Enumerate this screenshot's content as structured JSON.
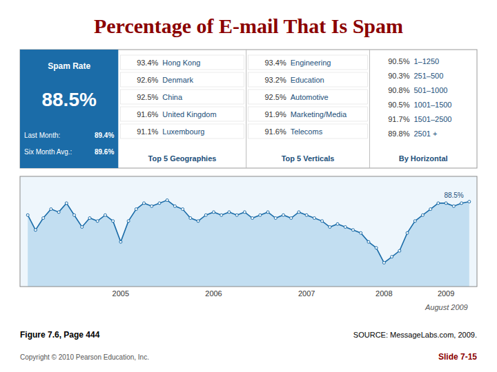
{
  "chart_data": {
    "type": "line",
    "title": "Percentage of E-mail That Is Spam",
    "categories": [
      null,
      null,
      null,
      null,
      null,
      null,
      null,
      null,
      null,
      null,
      null,
      null,
      "2005",
      null,
      null,
      null,
      null,
      null,
      null,
      null,
      null,
      null,
      null,
      null,
      "2006",
      null,
      null,
      null,
      null,
      null,
      null,
      null,
      null,
      null,
      null,
      null,
      "2007",
      null,
      null,
      null,
      null,
      null,
      null,
      null,
      null,
      null,
      "2008",
      null,
      null,
      null,
      null,
      null,
      null,
      null,
      "2009",
      null,
      null,
      null
    ],
    "values": [
      84,
      79,
      83,
      86,
      85,
      88,
      84,
      80,
      83,
      82,
      84,
      82,
      75,
      82,
      86,
      88,
      87,
      88,
      89,
      87,
      86,
      83,
      82,
      84,
      85,
      84,
      85,
      84,
      85,
      83,
      84,
      85,
      83,
      84,
      83,
      85,
      84,
      83,
      82,
      80,
      81,
      80,
      79,
      78,
      75,
      73,
      68,
      70,
      72,
      78,
      82,
      84,
      86,
      88,
      88,
      87,
      88,
      88.5
    ],
    "color": "#1B6CA8",
    "marker": "circle",
    "ylim": [
      60,
      97
    ],
    "tick_labels": "x",
    "grid": false,
    "annotations": [
      "88.5%"
    ]
  },
  "panel": {
    "spam_rate_label": "Spam Rate",
    "spam_rate_value": "88.5%",
    "last_month_label": "Last Month:",
    "last_month_value": "89.4%",
    "six_month_label": "Six Month Avg.:",
    "six_month_value": "89.6%",
    "geo_label": "Top 5 Geographies",
    "vert_label": "Top 5 Verticals",
    "horiz_label": "By Horizontal",
    "geo": [
      {
        "pct": "93.4%",
        "name": "Hong Kong"
      },
      {
        "pct": "92.6%",
        "name": "Denmark"
      },
      {
        "pct": "92.5%",
        "name": "China"
      },
      {
        "pct": "91.6%",
        "name": "United Kingdom"
      },
      {
        "pct": "91.1%",
        "name": "Luxembourg"
      }
    ],
    "vert": [
      {
        "pct": "93.4%",
        "name": "Engineering"
      },
      {
        "pct": "93.2%",
        "name": "Education"
      },
      {
        "pct": "92.5%",
        "name": "Automotive"
      },
      {
        "pct": "91.9%",
        "name": "Marketing/Media"
      },
      {
        "pct": "91.6%",
        "name": "Telecoms"
      }
    ],
    "horiz": [
      {
        "pct": "90.5%",
        "name": "1–1250"
      },
      {
        "pct": "90.3%",
        "name": "251–500"
      },
      {
        "pct": "90.8%",
        "name": "501–1000"
      },
      {
        "pct": "90.5%",
        "name": "1001–1500"
      },
      {
        "pct": "91.7%",
        "name": "1501–2500"
      },
      {
        "pct": "89.8%",
        "name": "2501 +"
      }
    ]
  },
  "footer": {
    "date_text": "August 2009",
    "figure_caption": "Figure 7.6, Page 444",
    "source_text": "SOURCE: MessageLabs.com, 2009.",
    "copyright_text": "Copyright © 2010 Pearson Education, Inc.",
    "slide_text": "Slide 7-15"
  }
}
